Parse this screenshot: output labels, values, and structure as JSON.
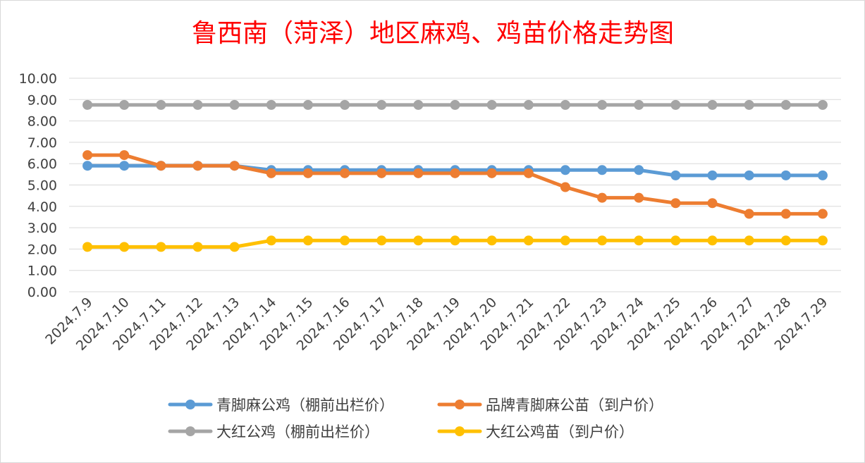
{
  "chart_data": {
    "type": "line",
    "title": "鲁西南（菏泽）地区麻鸡、鸡苗价格走势图",
    "xlabel": "",
    "ylabel": "",
    "ylim": [
      0,
      10
    ],
    "yticks": [
      "0.00",
      "1.00",
      "2.00",
      "3.00",
      "4.00",
      "5.00",
      "6.00",
      "7.00",
      "8.00",
      "9.00",
      "10.00"
    ],
    "grid": true,
    "legend_position": "bottom",
    "categories": [
      "2024.7.9",
      "2024.7.10",
      "2024.7.11",
      "2024.7.12",
      "2024.7.13",
      "2024.7.14",
      "2024.7.15",
      "2024.7.16",
      "2024.7.17",
      "2024.7.18",
      "2024.7.19",
      "2024.7.20",
      "2024.7.21",
      "2024.7.22",
      "2024.7.23",
      "2024.7.24",
      "2024.7.25",
      "2024.7.26",
      "2024.7.27",
      "2024.7.28",
      "2024.7.29"
    ],
    "series": [
      {
        "name": "青脚麻公鸡（棚前出栏价）",
        "color": "#5b9bd5",
        "values": [
          5.9,
          5.9,
          5.9,
          5.9,
          5.9,
          5.7,
          5.7,
          5.7,
          5.7,
          5.7,
          5.7,
          5.7,
          5.7,
          5.7,
          5.7,
          5.7,
          5.45,
          5.45,
          5.45,
          5.45,
          5.45
        ]
      },
      {
        "name": "品牌青脚麻公苗（到户价）",
        "color": "#ed7d31",
        "values": [
          6.4,
          6.4,
          5.9,
          5.9,
          5.9,
          5.55,
          5.55,
          5.55,
          5.55,
          5.55,
          5.55,
          5.55,
          5.55,
          4.9,
          4.4,
          4.4,
          4.15,
          4.15,
          3.65,
          3.65,
          3.65
        ]
      },
      {
        "name": "大红公鸡（棚前出栏价）",
        "color": "#a5a5a5",
        "values": [
          8.75,
          8.75,
          8.75,
          8.75,
          8.75,
          8.75,
          8.75,
          8.75,
          8.75,
          8.75,
          8.75,
          8.75,
          8.75,
          8.75,
          8.75,
          8.75,
          8.75,
          8.75,
          8.75,
          8.75,
          8.75
        ]
      },
      {
        "name": "大红公鸡苗（到户价）",
        "color": "#ffc000",
        "values": [
          2.1,
          2.1,
          2.1,
          2.1,
          2.1,
          2.4,
          2.4,
          2.4,
          2.4,
          2.4,
          2.4,
          2.4,
          2.4,
          2.4,
          2.4,
          2.4,
          2.4,
          2.4,
          2.4,
          2.4,
          2.4
        ]
      }
    ]
  }
}
